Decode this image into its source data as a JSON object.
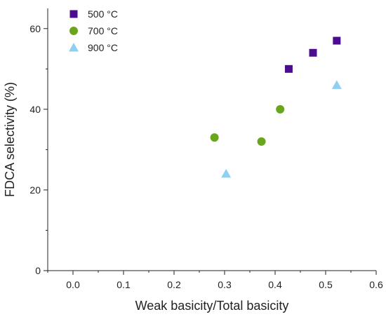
{
  "chart_data": {
    "type": "scatter",
    "title": "",
    "xlabel": "Weak basicity/Total basicity",
    "ylabel": "FDCA selectivity (%)",
    "xlim": [
      -0.05,
      0.6
    ],
    "ylim": [
      0,
      65
    ],
    "x_ticks": [
      0.0,
      0.1,
      0.2,
      0.3,
      0.4,
      0.5,
      0.6
    ],
    "x_tick_labels": [
      "0.0",
      "0.1",
      "0.2",
      "0.3",
      "0.4",
      "0.5",
      "0.6"
    ],
    "y_ticks": [
      0,
      20,
      40,
      60
    ],
    "y_tick_labels": [
      "0",
      "20",
      "40",
      "60"
    ],
    "legend_position": "top-left",
    "grid": false,
    "series": [
      {
        "name": "500 °C",
        "marker": "square",
        "color": "#4B0C8F",
        "x": [
          0.427,
          0.475,
          0.522
        ],
        "y": [
          50,
          54,
          57
        ]
      },
      {
        "name": "700 °C",
        "marker": "circle",
        "color": "#6AA51E",
        "x": [
          0.28,
          0.373,
          0.41
        ],
        "y": [
          33,
          32,
          40
        ]
      },
      {
        "name": "900 °C",
        "marker": "triangle",
        "color": "#8ECFF2",
        "x": [
          0.303,
          0.522
        ],
        "y": [
          24,
          46
        ]
      }
    ]
  }
}
